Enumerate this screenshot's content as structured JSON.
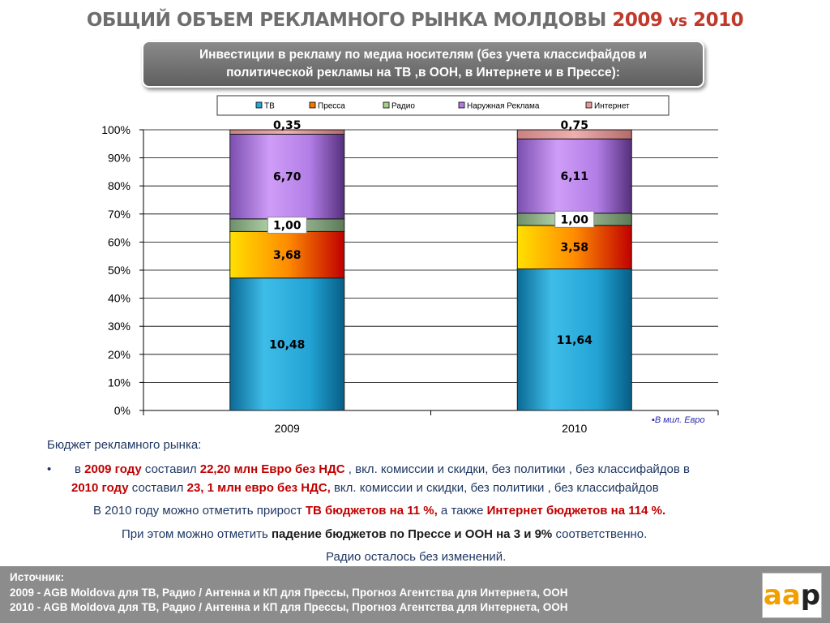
{
  "title": {
    "main": "ОБЩИЙ ОБЪЕМ РЕКЛАМНОГО РЫНКА МОЛДОВЫ",
    "year1": "2009",
    "vs": "vs",
    "year2": "2010"
  },
  "subtitle": "Инвестиции в рекламу по медиа носителям (без учета классифайдов и политической рекламы на ТВ ,в ООН, в Интернете и в Прессе):",
  "colors": {
    "tv": "#2aa6d6",
    "press": "#f07800",
    "radio": "#a8d08d",
    "ooh": "#b07ae0",
    "internet": "#e39c9c"
  },
  "chart_data": {
    "type": "bar",
    "stacked": "percent",
    "categories": [
      "2009",
      "2010"
    ],
    "series": [
      {
        "name": "ТВ",
        "values": [
          10.48,
          11.64
        ],
        "labels": [
          "10,48",
          "11,64"
        ]
      },
      {
        "name": "Пресса",
        "values": [
          3.68,
          3.58
        ],
        "labels": [
          "3,68",
          "3,58"
        ]
      },
      {
        "name": "Радио",
        "values": [
          1.0,
          1.0
        ],
        "labels": [
          "1,00",
          "1,00"
        ]
      },
      {
        "name": "Наружная Реклама",
        "values": [
          6.7,
          6.11
        ],
        "labels": [
          "6,70",
          "6,11"
        ]
      },
      {
        "name": "Интернет",
        "values": [
          0.35,
          0.75
        ],
        "labels": [
          "0,35",
          "0,75"
        ]
      }
    ],
    "y_ticks": [
      "0%",
      "10%",
      "20%",
      "30%",
      "40%",
      "50%",
      "60%",
      "70%",
      "80%",
      "90%",
      "100%"
    ],
    "ylim": [
      0,
      100
    ],
    "legend": "top",
    "grid": true
  },
  "unit_note": "▪В мил. Евро",
  "text": {
    "heading": "Бюджет рекламного рынка:",
    "bullet": "•",
    "l1_a": "в ",
    "l1_b": "2009 году",
    "l1_c": " составил ",
    "l1_d": "22,20 млн Евро без НДС",
    "l1_e": " , вкл. комиссии и скидки, без политики , без классифайдов  в",
    "l2_a": "2010 году",
    "l2_b": " составил ",
    "l2_c": "23, 1  млн евро без НДС,",
    "l2_d": " вкл. комиссии и скидки, без политики , без классифайдов",
    "l3_a": "В 2010 году можно отметить прирост ",
    "l3_b": "ТВ бюджетов на 11  %,",
    "l3_c": " а также ",
    "l3_d": "Интернет бюджетов на 114 %.",
    "l4_a": "При этом можно отметить ",
    "l4_b": "падение бюджетов по Прессе  и  ООН на 3 и 9%",
    "l4_c": " соответственно.",
    "l5": "Радио осталось без изменений."
  },
  "footer": {
    "label": "Источник:",
    "line1": "2009 - AGB Moldova для ТВ, Радио / Антенна и КП для Прессы, Прогноз Агентства для Интернета, ООН",
    "line2": "2010 - AGB Moldova для ТВ, Радио / Антенна и КП для Прессы, Прогноз Агентства для Интернета, ООН"
  },
  "logo": {
    "o": "aa",
    "k": "p"
  }
}
